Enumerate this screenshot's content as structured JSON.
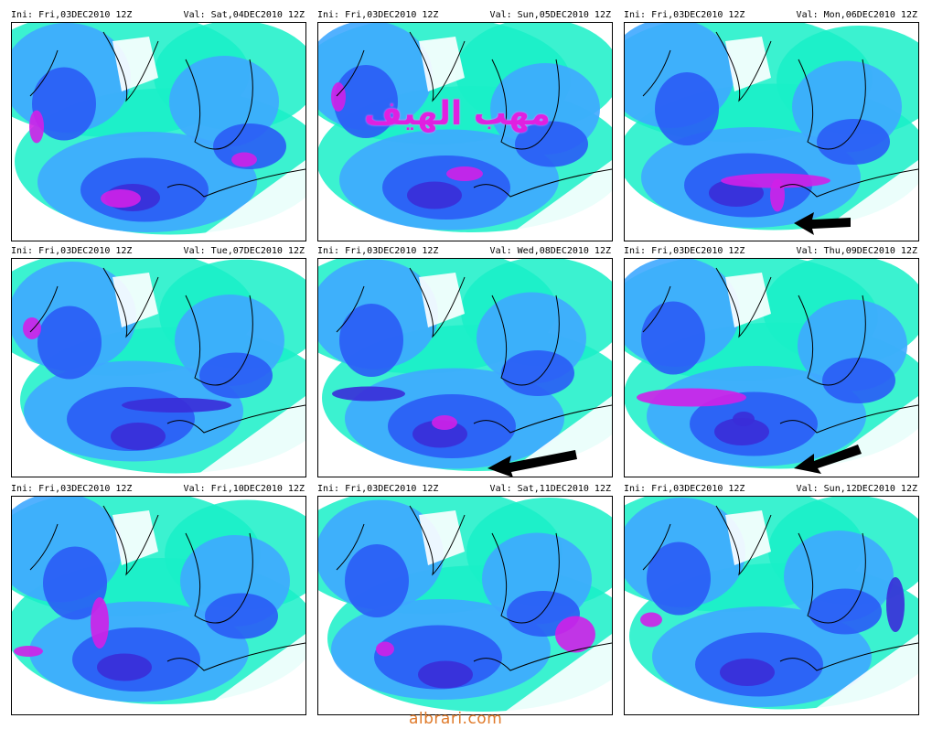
{
  "panels": [
    {
      "ini": "Ini: Fri,03DEC2010 12Z",
      "val": "Val: Sat,04DEC2010 12Z",
      "arrow": false
    },
    {
      "ini": "Ini: Fri,03DEC2010 12Z",
      "val": "Val: Sun,05DEC2010 12Z",
      "arrow": false
    },
    {
      "ini": "Ini: Fri,03DEC2010 12Z",
      "val": "Val: Mon,06DEC2010 12Z",
      "arrow": true
    },
    {
      "ini": "Ini: Fri,03DEC2010 12Z",
      "val": "Val: Tue,07DEC2010 12Z",
      "arrow": false
    },
    {
      "ini": "Ini: Fri,03DEC2010 12Z",
      "val": "Val: Wed,08DEC2010 12Z",
      "arrow": true
    },
    {
      "ini": "Ini: Fri,03DEC2010 12Z",
      "val": "Val: Thu,09DEC2010 12Z",
      "arrow": true
    },
    {
      "ini": "Ini: Fri,03DEC2010 12Z",
      "val": "Val: Fri,10DEC2010 12Z",
      "arrow": false
    },
    {
      "ini": "Ini: Fri,03DEC2010 12Z",
      "val": "Val: Sat,11DEC2010 12Z",
      "arrow": false
    },
    {
      "ini": "Ini: Fri,03DEC2010 12Z",
      "val": "Val: Sun,12DEC2010 12Z",
      "arrow": false
    }
  ],
  "watermark": "مهب الهيف",
  "footer": "albrari.com",
  "colors": {
    "background": "#ffffff",
    "cyan": "#19f0c8",
    "light_blue": "#3fa8ff",
    "blue": "#2a5cf5",
    "deep_blue": "#3a2cd8",
    "magenta": "#d020e8",
    "watermark": "#e020e0",
    "footer": "#e07a2a"
  }
}
